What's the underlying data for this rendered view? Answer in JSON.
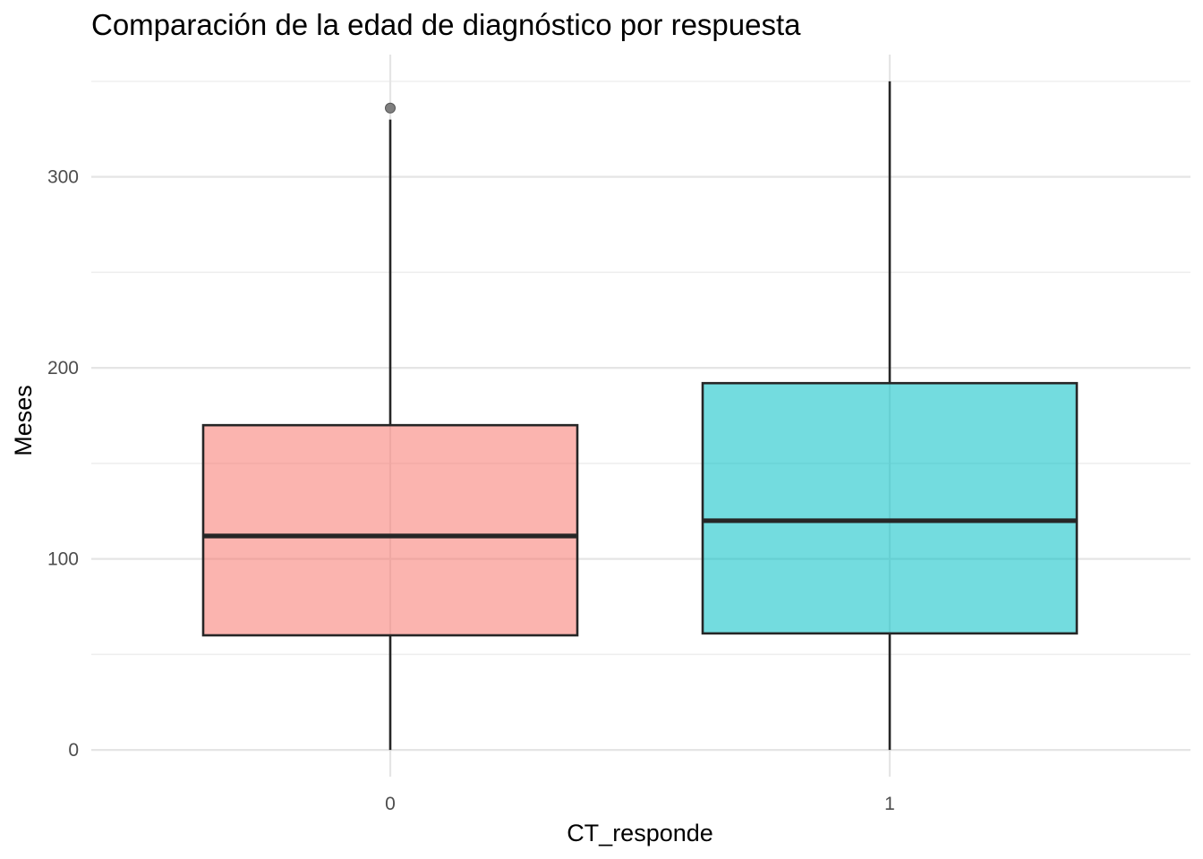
{
  "chart_data": {
    "type": "boxplot",
    "title": "Comparación de la edad de diagnóstico por respuesta",
    "xlabel": "CT_responde",
    "ylabel": "Meses",
    "categories": [
      "0",
      "1"
    ],
    "y_ticks": [
      0,
      100,
      200,
      300
    ],
    "y_tick_labels": [
      "0",
      "100",
      "200",
      "300"
    ],
    "y_minor_ticks": [
      50,
      150,
      250,
      350
    ],
    "ylim": [
      -14,
      364
    ],
    "grid": true,
    "legend": "none",
    "boxes": [
      {
        "category": "0",
        "whisker_low": 0,
        "q1": 60,
        "median": 112,
        "q3": 170,
        "whisker_high": 330,
        "outliers": [
          336
        ],
        "color": "#F8766D"
      },
      {
        "category": "1",
        "whisker_low": 0,
        "q1": 61,
        "median": 120,
        "q3": 192,
        "whisker_high": 350,
        "outliers": [],
        "color": "#00BFC4"
      }
    ],
    "box_fill_opacity": 0.55,
    "box_line_color": "#262626",
    "outlier_color": "#7f7f7f"
  }
}
